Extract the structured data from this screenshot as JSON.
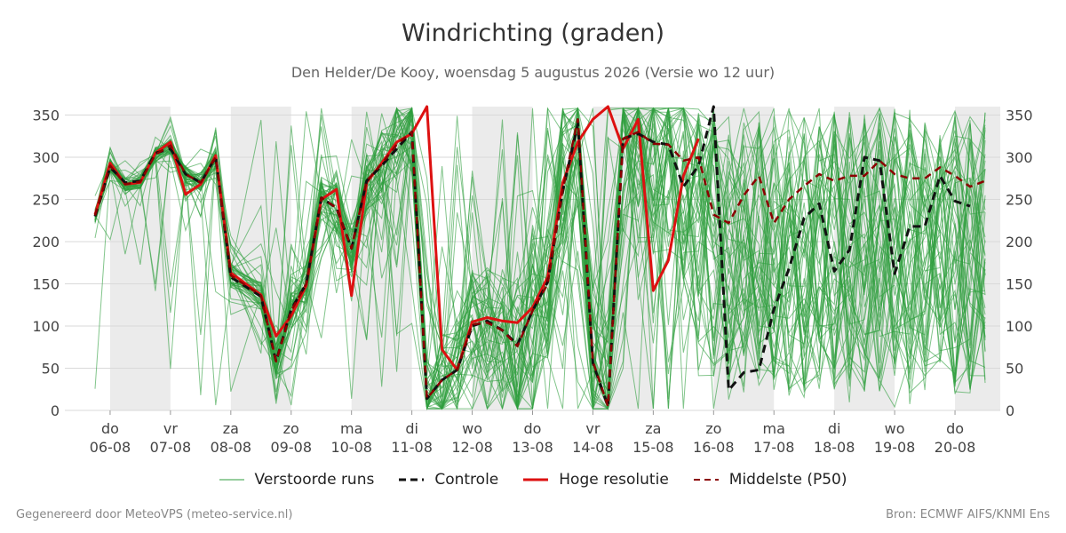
{
  "chart_data": {
    "type": "line",
    "title": "Windrichting (graden)",
    "subtitle": "Den Helder/De Kooy, woensdag  5 augustus 2026 (Versie wo 12 uur)",
    "xlabel": "",
    "ylabel": "",
    "ylim": [
      0,
      360
    ],
    "yticks": [
      0,
      50,
      100,
      150,
      200,
      250,
      300,
      350
    ],
    "grid": true,
    "legend_position": "bottom",
    "x_unit": "days from 06-08 00:00",
    "xlim": [
      -0.75,
      14.75
    ],
    "day_ticks": [
      {
        "x": 0,
        "dow": "do",
        "date": "06-08"
      },
      {
        "x": 1,
        "dow": "vr",
        "date": "07-08"
      },
      {
        "x": 2,
        "dow": "za",
        "date": "08-08"
      },
      {
        "x": 3,
        "dow": "zo",
        "date": "09-08"
      },
      {
        "x": 4,
        "dow": "ma",
        "date": "10-08"
      },
      {
        "x": 5,
        "dow": "di",
        "date": "11-08"
      },
      {
        "x": 6,
        "dow": "wo",
        "date": "12-08"
      },
      {
        "x": 7,
        "dow": "do",
        "date": "13-08"
      },
      {
        "x": 8,
        "dow": "vr",
        "date": "14-08"
      },
      {
        "x": 9,
        "dow": "za",
        "date": "15-08"
      },
      {
        "x": 10,
        "dow": "zo",
        "date": "16-08"
      },
      {
        "x": 11,
        "dow": "ma",
        "date": "17-08"
      },
      {
        "x": 12,
        "dow": "di",
        "date": "18-08"
      },
      {
        "x": 13,
        "dow": "wo",
        "date": "19-08"
      },
      {
        "x": 14,
        "dow": "do",
        "date": "20-08"
      }
    ],
    "shaded_bands": [
      [
        0,
        1
      ],
      [
        2,
        3
      ],
      [
        4,
        5
      ],
      [
        6,
        7
      ],
      [
        8,
        9
      ],
      [
        10,
        11
      ],
      [
        12,
        13
      ],
      [
        14,
        14.75
      ]
    ],
    "colors": {
      "ensemble": "#2e9e3e",
      "control": "#111111",
      "high_res": "#dd1111",
      "median": "#8b0000",
      "band": "#ebebeb",
      "grid": "#d9d9d9"
    },
    "ensemble_members": 50,
    "high_res": {
      "name": "Hoge resolutie",
      "points": [
        [
          -0.25,
          232
        ],
        [
          0,
          293
        ],
        [
          0.25,
          268
        ],
        [
          0.5,
          270
        ],
        [
          0.75,
          305
        ],
        [
          1,
          318
        ],
        [
          1.25,
          256
        ],
        [
          1.5,
          268
        ],
        [
          1.75,
          302
        ],
        [
          2,
          163
        ],
        [
          2.5,
          137
        ],
        [
          2.75,
          88
        ],
        [
          3,
          112
        ],
        [
          3.25,
          148
        ],
        [
          3.5,
          250
        ],
        [
          3.75,
          262
        ],
        [
          4,
          136
        ],
        [
          4.25,
          270
        ],
        [
          4.5,
          293
        ],
        [
          4.75,
          318
        ],
        [
          5,
          328
        ],
        [
          5.25,
          360
        ],
        [
          5.5,
          72
        ],
        [
          5.75,
          48
        ],
        [
          6,
          105
        ],
        [
          6.25,
          110
        ],
        [
          6.5,
          106
        ],
        [
          6.75,
          104
        ],
        [
          7,
          122
        ],
        [
          7.25,
          158
        ],
        [
          7.5,
          270
        ],
        [
          7.75,
          318
        ],
        [
          8,
          345
        ],
        [
          8.25,
          360
        ],
        [
          8.5,
          310
        ],
        [
          8.75,
          345
        ],
        [
          9,
          142
        ],
        [
          9.25,
          178
        ],
        [
          9.5,
          278
        ],
        [
          9.75,
          322
        ]
      ]
    },
    "control": {
      "name": "Controle",
      "points": [
        [
          -0.25,
          230
        ],
        [
          0,
          288
        ],
        [
          0.25,
          270
        ],
        [
          0.5,
          272
        ],
        [
          0.75,
          305
        ],
        [
          1,
          310
        ],
        [
          1.25,
          280
        ],
        [
          1.5,
          270
        ],
        [
          1.75,
          300
        ],
        [
          2,
          158
        ],
        [
          2.5,
          135
        ],
        [
          2.75,
          58
        ],
        [
          3,
          120
        ],
        [
          3.25,
          150
        ],
        [
          3.5,
          252
        ],
        [
          3.75,
          240
        ],
        [
          4,
          192
        ],
        [
          4.25,
          272
        ],
        [
          4.5,
          290
        ],
        [
          4.75,
          310
        ],
        [
          5,
          330
        ],
        [
          5.25,
          14
        ],
        [
          5.5,
          36
        ],
        [
          5.75,
          48
        ],
        [
          6,
          100
        ],
        [
          6.25,
          106
        ],
        [
          6.5,
          95
        ],
        [
          6.75,
          78
        ],
        [
          7,
          118
        ],
        [
          7.25,
          152
        ],
        [
          7.5,
          260
        ],
        [
          7.75,
          340
        ],
        [
          8,
          56
        ],
        [
          8.25,
          5
        ],
        [
          8.5,
          322
        ],
        [
          8.75,
          328
        ],
        [
          9,
          318
        ],
        [
          9.25,
          315
        ],
        [
          9.5,
          265
        ],
        [
          9.75,
          290
        ],
        [
          10,
          360
        ],
        [
          10.25,
          24
        ],
        [
          10.5,
          45
        ],
        [
          10.75,
          48
        ],
        [
          11,
          120
        ],
        [
          11.25,
          168
        ],
        [
          11.5,
          228
        ],
        [
          11.75,
          245
        ],
        [
          12,
          165
        ],
        [
          12.25,
          190
        ],
        [
          12.5,
          300
        ],
        [
          12.75,
          296
        ],
        [
          13,
          162
        ],
        [
          13.25,
          218
        ],
        [
          13.5,
          218
        ],
        [
          13.75,
          278
        ],
        [
          14,
          248
        ],
        [
          14.25,
          242
        ]
      ]
    },
    "median": {
      "name": "Middelste (P50)",
      "points": [
        [
          -0.25,
          231
        ],
        [
          0,
          290
        ],
        [
          0.25,
          268
        ],
        [
          0.5,
          271
        ],
        [
          0.75,
          303
        ],
        [
          1,
          314
        ],
        [
          1.25,
          280
        ],
        [
          1.5,
          270
        ],
        [
          1.75,
          300
        ],
        [
          2,
          160
        ],
        [
          2.5,
          136
        ],
        [
          2.75,
          58
        ],
        [
          3,
          118
        ],
        [
          3.25,
          150
        ],
        [
          3.5,
          252
        ],
        [
          3.75,
          240
        ],
        [
          4,
          192
        ],
        [
          4.25,
          272
        ],
        [
          4.5,
          292
        ],
        [
          4.75,
          315
        ],
        [
          5,
          330
        ],
        [
          5.25,
          14
        ],
        [
          5.5,
          36
        ],
        [
          5.75,
          48
        ],
        [
          6,
          102
        ],
        [
          6.25,
          104
        ],
        [
          6.5,
          95
        ],
        [
          6.75,
          76
        ],
        [
          7,
          118
        ],
        [
          7.25,
          150
        ],
        [
          7.5,
          262
        ],
        [
          7.75,
          345
        ],
        [
          8,
          58
        ],
        [
          8.25,
          5
        ],
        [
          8.5,
          322
        ],
        [
          8.75,
          330
        ],
        [
          9,
          316
        ],
        [
          9.25,
          315
        ],
        [
          9.5,
          296
        ],
        [
          9.75,
          300
        ],
        [
          10,
          232
        ],
        [
          10.25,
          222
        ],
        [
          10.5,
          255
        ],
        [
          10.75,
          278
        ],
        [
          11,
          222
        ],
        [
          11.25,
          250
        ],
        [
          11.5,
          266
        ],
        [
          11.75,
          280
        ],
        [
          12,
          272
        ],
        [
          12.25,
          278
        ],
        [
          12.5,
          278
        ],
        [
          12.75,
          296
        ],
        [
          13,
          280
        ],
        [
          13.25,
          275
        ],
        [
          13.5,
          275
        ],
        [
          13.75,
          288
        ],
        [
          14,
          278
        ],
        [
          14.25,
          265
        ],
        [
          14.5,
          272
        ]
      ]
    }
  },
  "legend": {
    "ensemble": "Verstoorde runs",
    "control": "Controle",
    "high_res": "Hoge resolutie",
    "median": "Middelste (P50)"
  },
  "footer": {
    "left": "Gegenereerd door MeteoVPS (meteo-service.nl)",
    "right": "Bron: ECMWF AIFS/KNMI Ens"
  }
}
